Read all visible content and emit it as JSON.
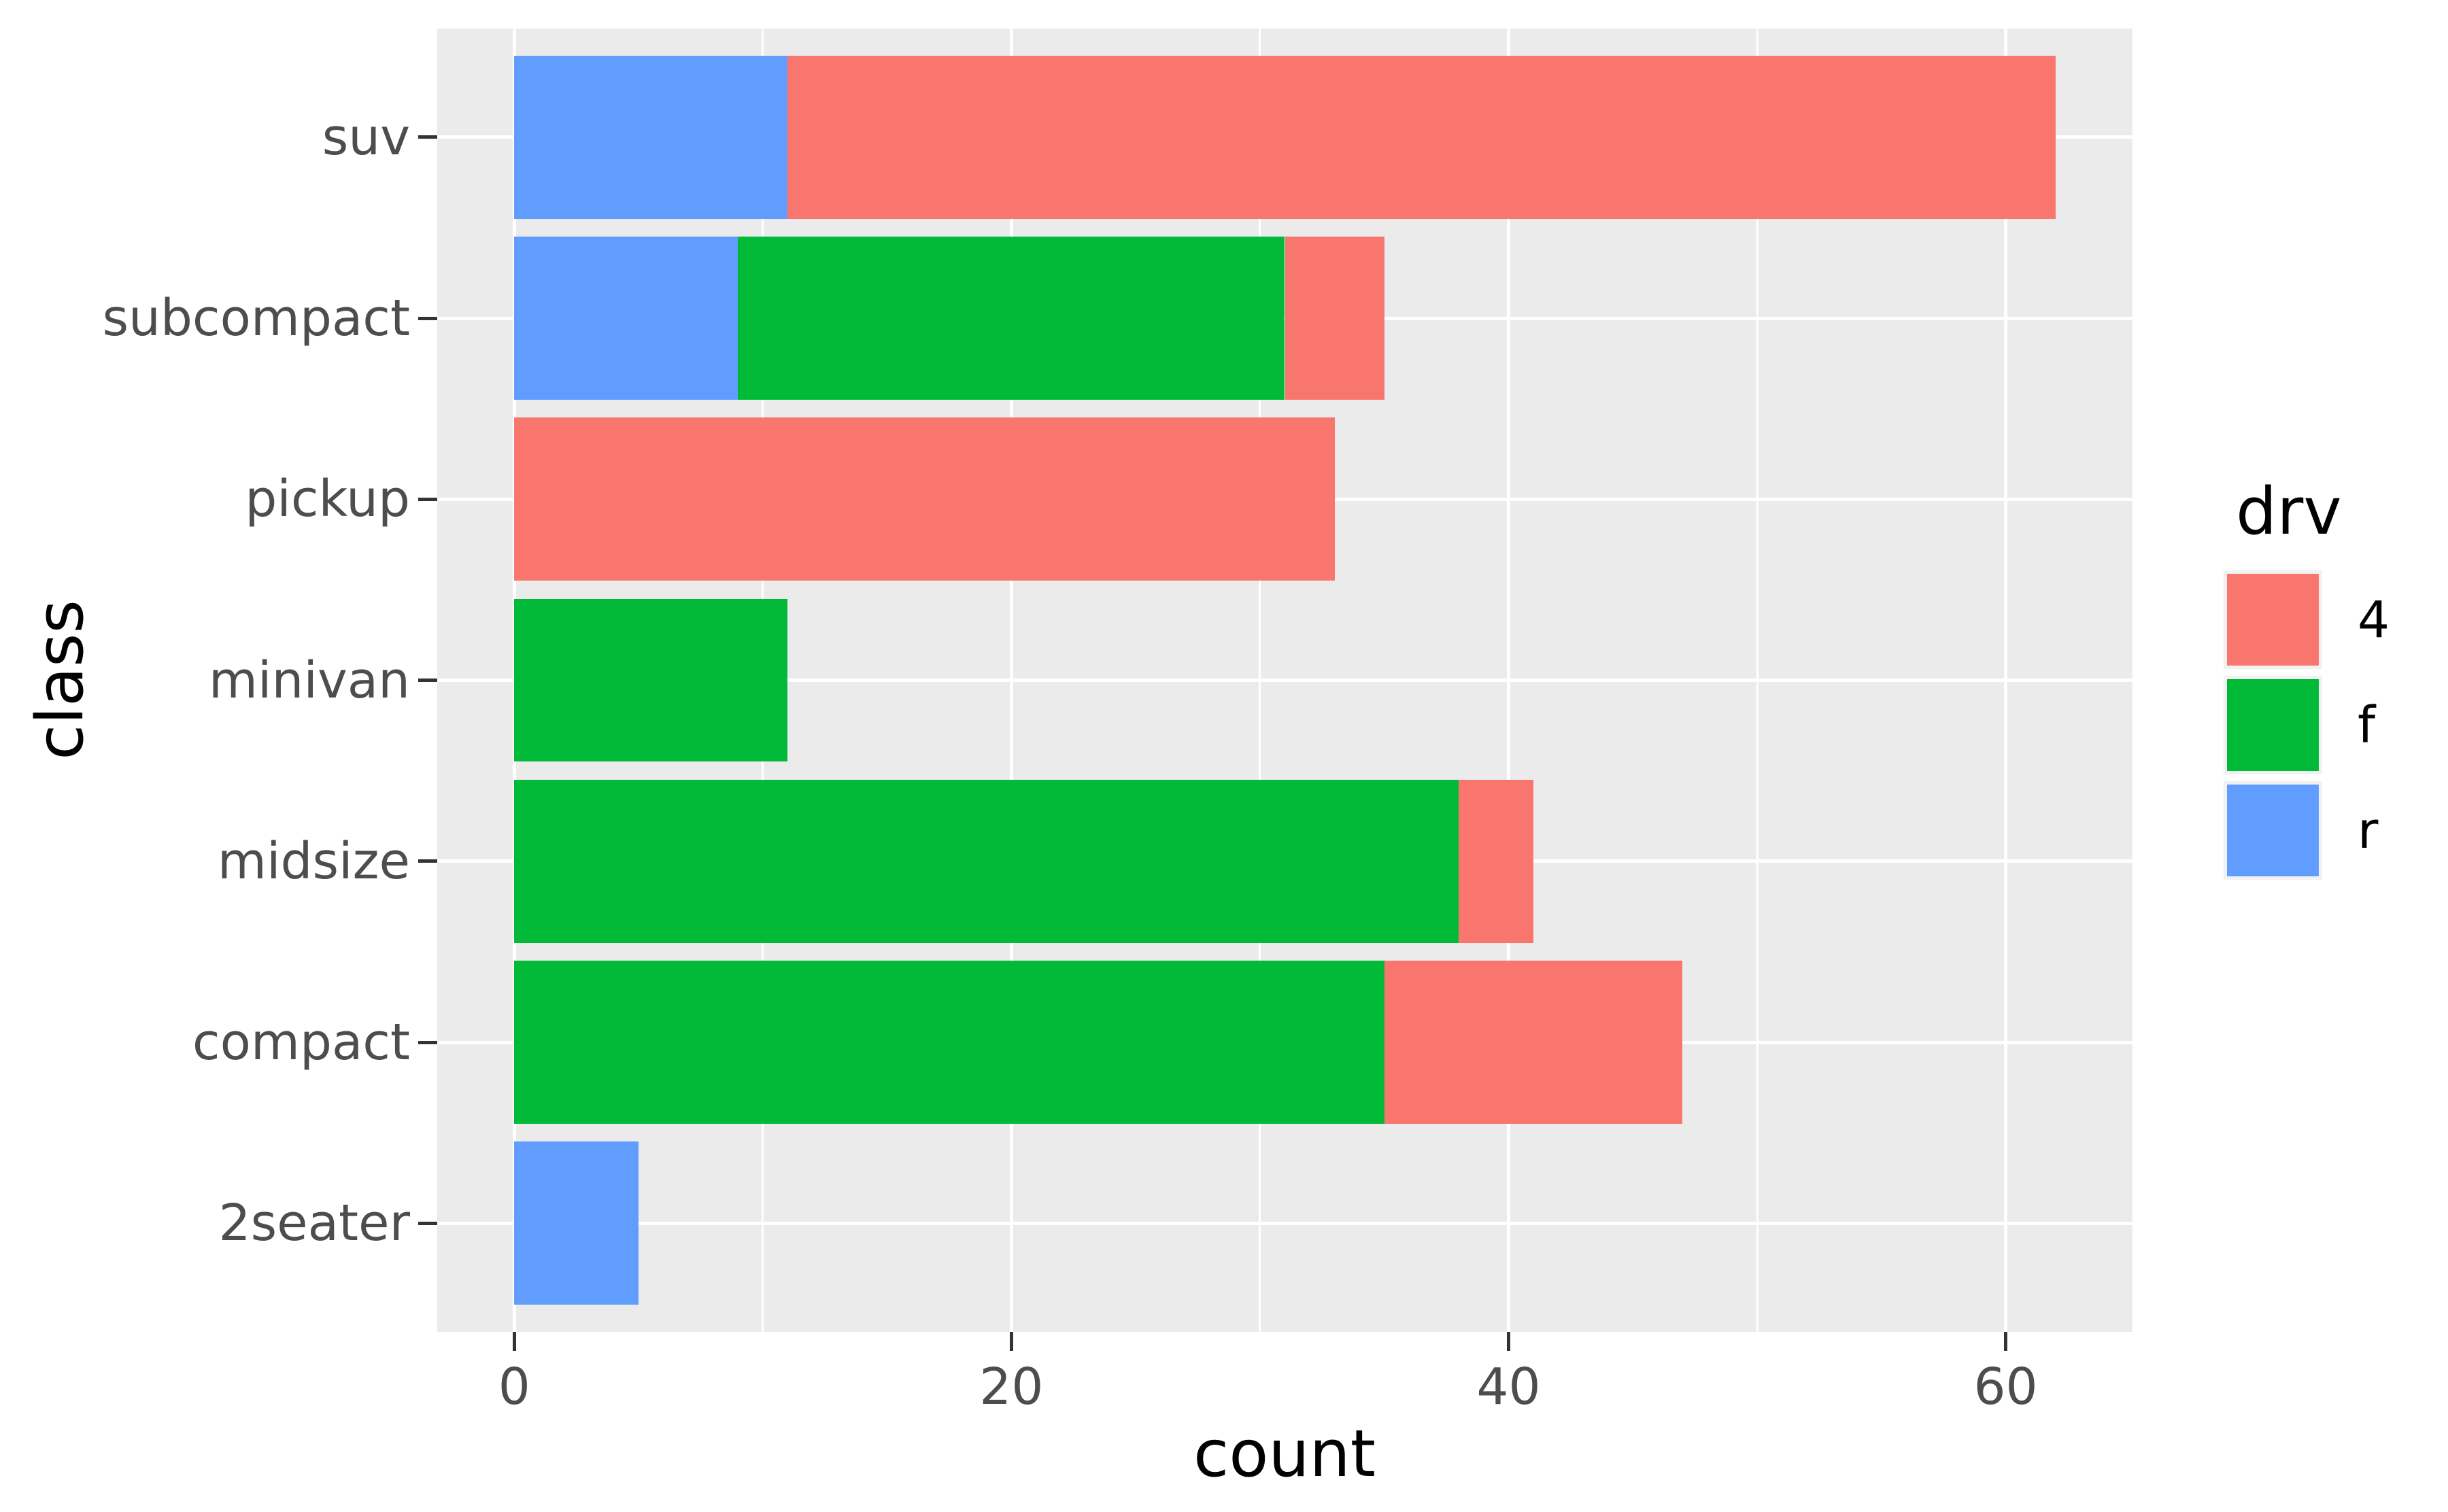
{
  "colors": {
    "page_bg": "#FFFFFF",
    "panel_bg": "#EBEBEB",
    "grid": "#FFFFFF",
    "tick": "#333333",
    "tick_label": "#4D4D4D",
    "title": "#000000",
    "legend_key_bg": "#F2F2F2",
    "fill_4": "#F8766D",
    "fill_f": "#00BA38",
    "fill_r": "#619CFF"
  },
  "chart_data": {
    "type": "bar",
    "orientation": "horizontal",
    "stacked": true,
    "title": "",
    "xlabel": "count",
    "ylabel": "class",
    "categories_top_to_bottom": [
      "suv",
      "subcompact",
      "pickup",
      "minivan",
      "midsize",
      "compact",
      "2seater"
    ],
    "series_stack_order": [
      {
        "name": "r",
        "color": "#619CFF",
        "values": [
          11,
          9,
          0,
          0,
          0,
          0,
          5
        ]
      },
      {
        "name": "f",
        "color": "#00BA38",
        "values": [
          0,
          22,
          0,
          11,
          38,
          35,
          0
        ]
      },
      {
        "name": "4",
        "color": "#F8766D",
        "values": [
          51,
          4,
          33,
          0,
          3,
          12,
          0
        ]
      }
    ],
    "x_axis": {
      "ticks": [
        0,
        20,
        40,
        60
      ],
      "minor_ticks": [
        10,
        30,
        50
      ],
      "range": [
        -3.1,
        65.1
      ]
    },
    "grid": "white major + minor on grey panel",
    "layout_hints": {
      "bar_fraction": 0.9,
      "band_expand": 0.6,
      "legend_position": "right"
    },
    "legend": {
      "title": "drv",
      "entries": [
        {
          "label": "4",
          "color": "#F8766D"
        },
        {
          "label": "f",
          "color": "#00BA38"
        },
        {
          "label": "r",
          "color": "#619CFF"
        }
      ]
    }
  }
}
